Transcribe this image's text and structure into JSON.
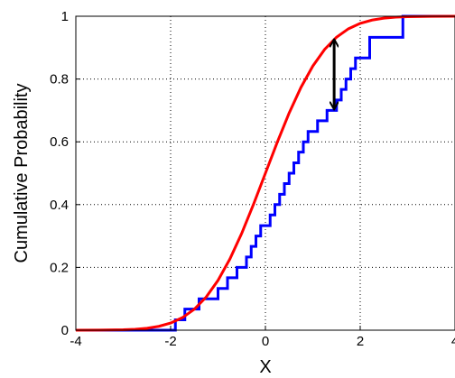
{
  "chart_data": {
    "type": "line",
    "title": "",
    "xlabel": "X",
    "ylabel": "Cumulative Probability",
    "xlim": [
      -4,
      4
    ],
    "ylim": [
      0,
      1
    ],
    "xticks": [
      -4,
      -2,
      0,
      2,
      4
    ],
    "xtick_labels": [
      "-4",
      "-2",
      "0",
      "2",
      "4"
    ],
    "yticks": [
      0,
      0.2,
      0.4,
      0.6,
      0.8,
      1
    ],
    "ytick_labels": [
      "0",
      "0.2",
      "0.4",
      "0.6",
      "0.8",
      "1"
    ],
    "grid": true,
    "legend": "none",
    "series": [
      {
        "kind": "step",
        "color": "#0000ff",
        "x": [
          -4,
          -1.9,
          -1.7,
          -1.4,
          -1.0,
          -0.8,
          -0.6,
          -0.4,
          -0.3,
          -0.2,
          -0.1,
          0.1,
          0.2,
          0.3,
          0.4,
          0.5,
          0.6,
          0.7,
          0.8,
          0.9,
          1.1,
          1.3,
          1.5,
          1.6,
          1.7,
          1.8,
          1.9,
          2.2,
          2.9,
          4
        ],
        "y": [
          0,
          0.033,
          0.067,
          0.1,
          0.133,
          0.167,
          0.2,
          0.233,
          0.267,
          0.3,
          0.333,
          0.367,
          0.4,
          0.433,
          0.467,
          0.5,
          0.533,
          0.567,
          0.6,
          0.633,
          0.667,
          0.7,
          0.733,
          0.767,
          0.8,
          0.833,
          0.867,
          0.933,
          1.0,
          1.0
        ]
      },
      {
        "kind": "line",
        "color": "#ff0000",
        "x": [
          -4,
          -3.5,
          -3,
          -2.75,
          -2.5,
          -2.25,
          -2,
          -1.75,
          -1.5,
          -1.25,
          -1,
          -0.75,
          -0.5,
          -0.25,
          0,
          0.25,
          0.5,
          0.75,
          1,
          1.25,
          1.5,
          1.75,
          2,
          2.25,
          2.5,
          2.75,
          3,
          3.5,
          4
        ],
        "y": [
          3e-05,
          0.0002,
          0.0013,
          0.003,
          0.0062,
          0.0122,
          0.0228,
          0.0401,
          0.0668,
          0.1056,
          0.1587,
          0.2266,
          0.3085,
          0.4013,
          0.5,
          0.5987,
          0.6915,
          0.7734,
          0.8413,
          0.8944,
          0.9332,
          0.9599,
          0.9772,
          0.9878,
          0.9938,
          0.997,
          0.9987,
          0.9998,
          0.99997
        ]
      }
    ],
    "annotations": [
      {
        "type": "double-arrow",
        "x": 1.45,
        "y_from": 0.7,
        "y_to": 0.93,
        "color": "#000000"
      }
    ]
  }
}
